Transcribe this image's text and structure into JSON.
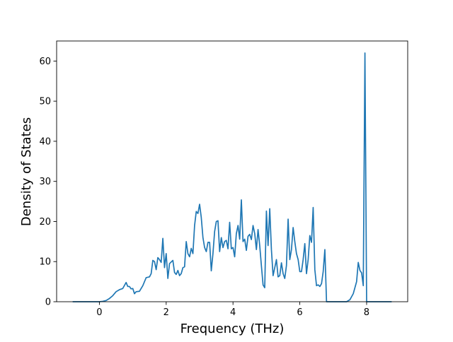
{
  "chart_data": {
    "type": "line",
    "xlabel": "Frequency (THz)",
    "ylabel": "Density of States",
    "color": "#1f77b4",
    "xlim": [
      -1.28,
      9.23
    ],
    "ylim": [
      0,
      65
    ],
    "xticks": [
      0,
      2,
      4,
      6,
      8
    ],
    "yticks": [
      0,
      10,
      20,
      30,
      40,
      50,
      60
    ],
    "grid": false,
    "x": [
      -0.8,
      -0.4,
      0,
      0.1,
      0.2,
      0.3,
      0.4,
      0.5,
      0.6,
      0.7,
      0.8,
      0.85,
      0.9,
      0.95,
      1.0,
      1.05,
      1.1,
      1.2,
      1.3,
      1.4,
      1.5,
      1.55,
      1.6,
      1.65,
      1.7,
      1.75,
      1.8,
      1.85,
      1.9,
      1.95,
      2.0,
      2.05,
      2.1,
      2.2,
      2.25,
      2.3,
      2.35,
      2.4,
      2.45,
      2.5,
      2.55,
      2.6,
      2.65,
      2.7,
      2.75,
      2.8,
      2.85,
      2.9,
      2.95,
      3.0,
      3.05,
      3.1,
      3.15,
      3.2,
      3.25,
      3.3,
      3.35,
      3.4,
      3.45,
      3.5,
      3.55,
      3.6,
      3.65,
      3.7,
      3.75,
      3.8,
      3.85,
      3.9,
      3.95,
      4.0,
      4.05,
      4.1,
      4.15,
      4.2,
      4.25,
      4.3,
      4.35,
      4.4,
      4.45,
      4.5,
      4.55,
      4.6,
      4.65,
      4.7,
      4.75,
      4.8,
      4.85,
      4.9,
      4.95,
      5.0,
      5.05,
      5.1,
      5.15,
      5.2,
      5.25,
      5.3,
      5.35,
      5.4,
      5.45,
      5.5,
      5.55,
      5.6,
      5.65,
      5.7,
      5.75,
      5.8,
      5.85,
      5.9,
      5.95,
      6.0,
      6.05,
      6.1,
      6.15,
      6.2,
      6.25,
      6.3,
      6.35,
      6.4,
      6.45,
      6.5,
      6.55,
      6.6,
      6.65,
      6.7,
      6.75,
      6.8,
      7.0,
      7.4,
      7.5,
      7.6,
      7.7,
      7.75,
      7.8,
      7.85,
      7.9,
      7.95,
      8.0,
      8.75
    ],
    "values": [
      0,
      0,
      0,
      0.1,
      0.3,
      0.8,
      1.5,
      2.5,
      3,
      3.3,
      4.8,
      3.8,
      3.8,
      3.2,
      3.3,
      2,
      2.5,
      2.6,
      4,
      6,
      6.2,
      7,
      10.3,
      10,
      8,
      11,
      10.5,
      9.8,
      15.8,
      8.5,
      12,
      5.8,
      9.5,
      10.3,
      7.3,
      6.8,
      7.8,
      6.5,
      7,
      8.5,
      8.7,
      15,
      12,
      11.2,
      13.3,
      12,
      19,
      22.5,
      22,
      24.3,
      21,
      16,
      13.5,
      12.5,
      14.8,
      14.8,
      7.7,
      12,
      17.5,
      20,
      20.2,
      12.5,
      16,
      13.5,
      15,
      15.3,
      13.2,
      19.8,
      13.2,
      13.5,
      11.2,
      17,
      19,
      15.6,
      25.4,
      15,
      15.6,
      12.8,
      16.3,
      16.8,
      15.5,
      19,
      17,
      13,
      18,
      14,
      9,
      4.2,
      3.5,
      22.6,
      14,
      23.2,
      13,
      6.5,
      8.5,
      10.5,
      6.2,
      6.5,
      9.7,
      7,
      5.8,
      9,
      20.6,
      10.5,
      13,
      18.5,
      15,
      12,
      10.5,
      7.5,
      7.5,
      10.5,
      14.5,
      7,
      10.5,
      16.5,
      14.8,
      23.5,
      8,
      4,
      4.2,
      3.8,
      4.5,
      7.5,
      13,
      0,
      0,
      0,
      0.5,
      2,
      5,
      9.8,
      7.8,
      7.2,
      4,
      62,
      0,
      0
    ]
  }
}
